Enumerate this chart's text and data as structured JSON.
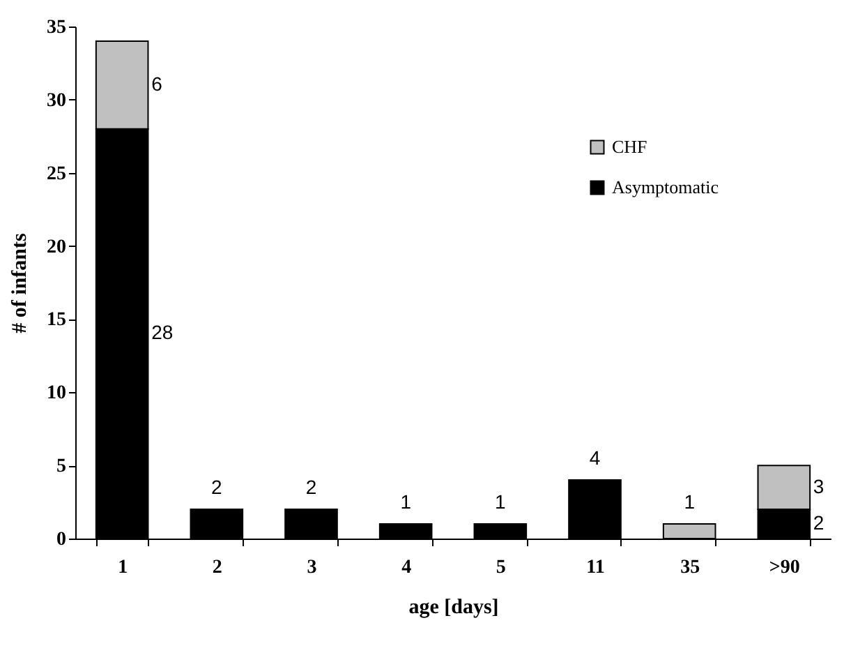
{
  "chart_data": {
    "type": "bar",
    "stacked": true,
    "xlabel": "age [days]",
    "ylabel": "# of infants",
    "categories": [
      "1",
      "2",
      "3",
      "4",
      "5",
      "11",
      "35",
      ">90"
    ],
    "series": [
      {
        "name": "Asymptomatic",
        "color": "#000000",
        "values": [
          28,
          2,
          2,
          1,
          1,
          4,
          0,
          2
        ],
        "value_labels": [
          "28",
          "2",
          "2",
          "1",
          "1",
          "4",
          null,
          "2"
        ]
      },
      {
        "name": "CHF",
        "color": "#c0c0c0",
        "values": [
          6,
          0,
          0,
          0,
          0,
          0,
          1,
          3
        ],
        "value_labels": [
          "6",
          null,
          null,
          null,
          null,
          null,
          "1",
          "3"
        ]
      }
    ],
    "ylim": [
      0,
      35
    ],
    "yticks": [
      0,
      5,
      10,
      15,
      20,
      25,
      30,
      35
    ],
    "grid": false,
    "legend": "top right"
  }
}
